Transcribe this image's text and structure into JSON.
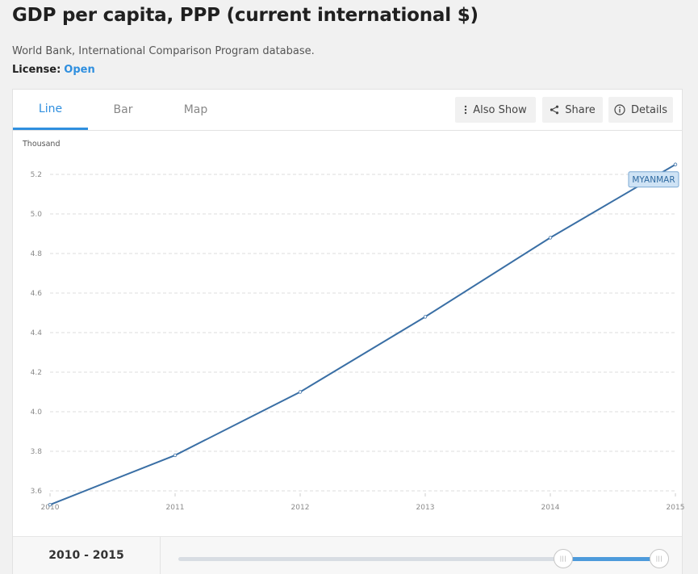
{
  "header": {
    "title": "GDP per capita, PPP (current international $)",
    "source": "World Bank, International Comparison Program database.",
    "license_label": "License:",
    "license_value": "Open"
  },
  "tabs": [
    {
      "label": "Line",
      "active": true
    },
    {
      "label": "Bar",
      "active": false
    },
    {
      "label": "Map",
      "active": false
    }
  ],
  "toolbar": {
    "also_show": "Also Show",
    "share": "Share",
    "details": "Details"
  },
  "icons": {
    "also_show": "vertical-dots-icon",
    "share": "share-icon",
    "details": "info-icon"
  },
  "colors": {
    "accent": "#2f8fdf",
    "series_line": "#3a6fa5",
    "label_bg": "#cfe3f5"
  },
  "chart_data": {
    "type": "line",
    "ylabel": "Thousand",
    "x": [
      2010,
      2011,
      2012,
      2013,
      2014,
      2015
    ],
    "series": [
      {
        "name": "MYANMAR",
        "values": [
          3.53,
          3.78,
          4.1,
          4.48,
          4.88,
          5.25
        ]
      }
    ],
    "ylim": [
      3.55,
      5.3
    ],
    "yticks": [
      "3.6",
      "3.8",
      "4.0",
      "4.2",
      "4.4",
      "4.6",
      "4.8",
      "5.0",
      "5.2"
    ],
    "xticks": [
      "2010",
      "2011",
      "2012",
      "2013",
      "2014",
      "2015"
    ],
    "grid": true,
    "legend": "label at end of line"
  },
  "range": {
    "label": "2010 - 2015",
    "handle_glyph": "|||"
  }
}
